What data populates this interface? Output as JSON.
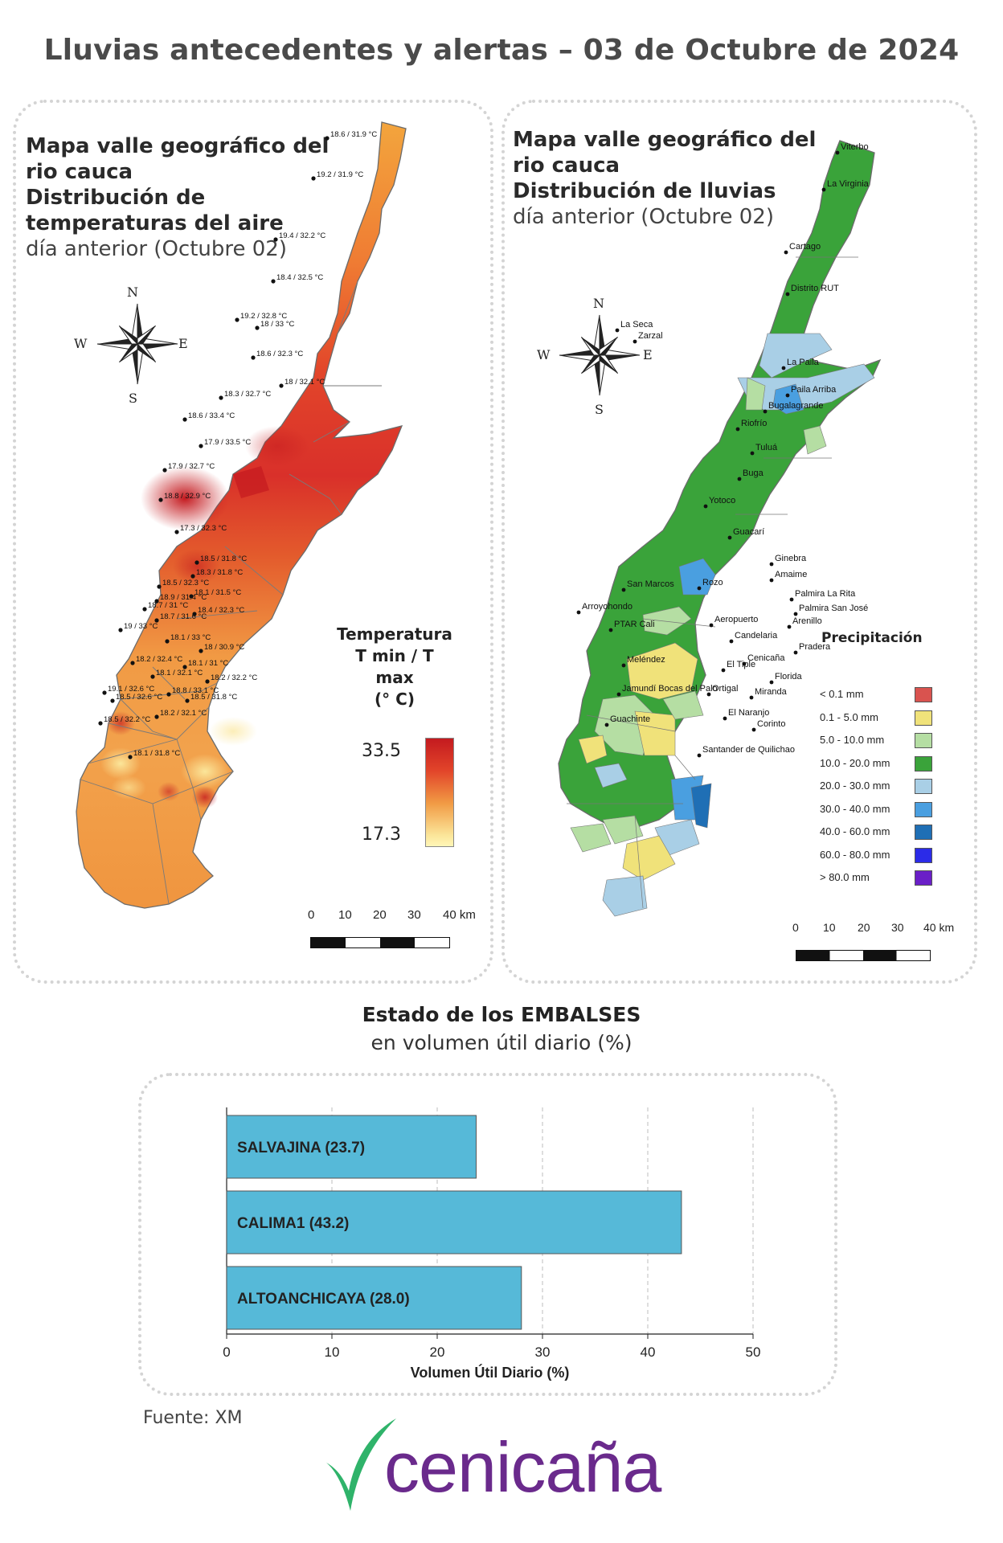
{
  "title": "Lluvias antecedentes y alertas – 03 de Octubre de 2024",
  "temp_map": {
    "title_line1": "Mapa valle geográfico del",
    "title_line2": "rio cauca",
    "title_line3": "Distribución de",
    "title_line4": "temperaturas del aire",
    "subtitle": "día anterior (Octubre 02)",
    "compass": {
      "n": "N",
      "s": "S",
      "e": "E",
      "w": "W"
    },
    "legend_title_1": "Temperatura",
    "legend_title_2": "T min / T max",
    "legend_title_3": "(° C)",
    "legend_max": "33.5",
    "legend_min": "17.3",
    "scale": [
      "0",
      "10",
      "20",
      "30",
      "40 km"
    ],
    "stations": [
      "18.6 / 31.9 °C",
      "19.2 / 31.9 °C",
      "19.4 / 32.2 °C",
      "18.4 / 32.5 °C",
      "19.2 / 32.8 °C",
      "18 / 33 °C",
      "18.6 / 32.3 °C",
      "18 / 32.1 °C",
      "18.3 / 32.7 °C",
      "18.6 / 33.4 °C",
      "17.9 / 33.5 °C",
      "17.9 / 32.7 °C",
      "18.8 / 32.9 °C",
      "17.3 / 32.3 °C",
      "18.5 / 31.8 °C",
      "18.3 / 31.8 °C",
      "18.5 / 32.3 °C",
      "18.9 / 31.4 °C",
      "18.1 / 31.5 °C",
      "18.7 / 31 °C",
      "18.4 / 32.3 °C",
      "18.7 / 31.6 °C",
      "19 / 33 °C",
      "18.1 / 33 °C",
      "18 / 30.9 °C",
      "18.1 / 31 °C",
      "18.2 / 32.4 °C",
      "18.1 / 32.1 °C",
      "18.2 / 32.2 °C",
      "19.1 / 32.6 °C",
      "18.5 / 32.6 °C",
      "18.8 / 33.1 °C",
      "18.5 / 31.8 °C",
      "18.5 / 32.2 °C",
      "18.2 / 32.1 °C",
      "18.1 / 31.8 °C"
    ]
  },
  "rain_map": {
    "title_line1": "Mapa valle geográfico del",
    "title_line2": "rio cauca",
    "title_line3": "Distribución de lluvias",
    "subtitle": "día anterior (Octubre 02)",
    "compass": {
      "n": "N",
      "s": "S",
      "e": "E",
      "w": "W"
    },
    "legend_title": "Precipitación",
    "legend": [
      {
        "label": "< 0.1 mm",
        "color": "#d9534f"
      },
      {
        "label": "0.1 - 5.0 mm",
        "color": "#f0e27a"
      },
      {
        "label": "5.0 - 10.0 mm",
        "color": "#b5dea3"
      },
      {
        "label": "10.0 - 20.0 mm",
        "color": "#3aa33a"
      },
      {
        "label": "20.0 - 30.0 mm",
        "color": "#a9cfe6"
      },
      {
        "label": "30.0 - 40.0 mm",
        "color": "#4a9fe0"
      },
      {
        "label": "40.0 - 60.0 mm",
        "color": "#1f6fb5"
      },
      {
        "label": "60.0 - 80.0 mm",
        "color": "#2b2be8"
      },
      {
        "label": "> 80.0 mm",
        "color": "#6a1fc7"
      }
    ],
    "scale": [
      "0",
      "10",
      "20",
      "30",
      "40 km"
    ],
    "cities": [
      "Viterbo",
      "La Virginia",
      "Cartago",
      "Distrito RUT",
      "La Seca",
      "Zarzal",
      "La Paila",
      "Paila Arriba",
      "Bugalagrande",
      "Riofrío",
      "Tuluá",
      "Buga",
      "Yotoco",
      "Guacarí",
      "Ginebra",
      "San Marcos",
      "Rozo",
      "Amaime",
      "Palmira La Rita",
      "Arroyohondo",
      "Palmira San José",
      "Aeropuerto",
      "Arenillo",
      "PTAR Cali",
      "Candelaria",
      "Pradera",
      "Meléndez",
      "El Tiple",
      "Cenicaña",
      "Florida",
      "Jamundí Bocas del Palo",
      "Ortigal",
      "Miranda",
      "El Naranjo",
      "Guachinte",
      "Corinto",
      "Santander de Quilichao"
    ]
  },
  "reservoirs": {
    "title": "Estado de los EMBALSES",
    "subtitle": "en volumen útil diario (%)"
  },
  "chart_data": {
    "type": "bar",
    "orientation": "horizontal",
    "categories": [
      "SALVAJINA",
      "CALIMA1",
      "ALTOANCHICAYA"
    ],
    "values": [
      23.7,
      43.2,
      28.0
    ],
    "bar_labels": [
      "SALVAJINA (23.7)",
      "CALIMA1 (43.2)",
      "ALTOANCHICAYA (28.0)"
    ],
    "xlabel": "Volumen Útil Diario (%)",
    "ylabel": "",
    "xlim": [
      0,
      50
    ],
    "xticks": [
      0,
      10,
      20,
      30,
      40,
      50
    ],
    "grid": "vertical dashed",
    "bar_color": "#56b9d8"
  },
  "source": "Fuente: XM",
  "logo": {
    "text": "cenicaña",
    "leaf_color": "#2fb36a",
    "text_color": "#6a2a8c"
  }
}
